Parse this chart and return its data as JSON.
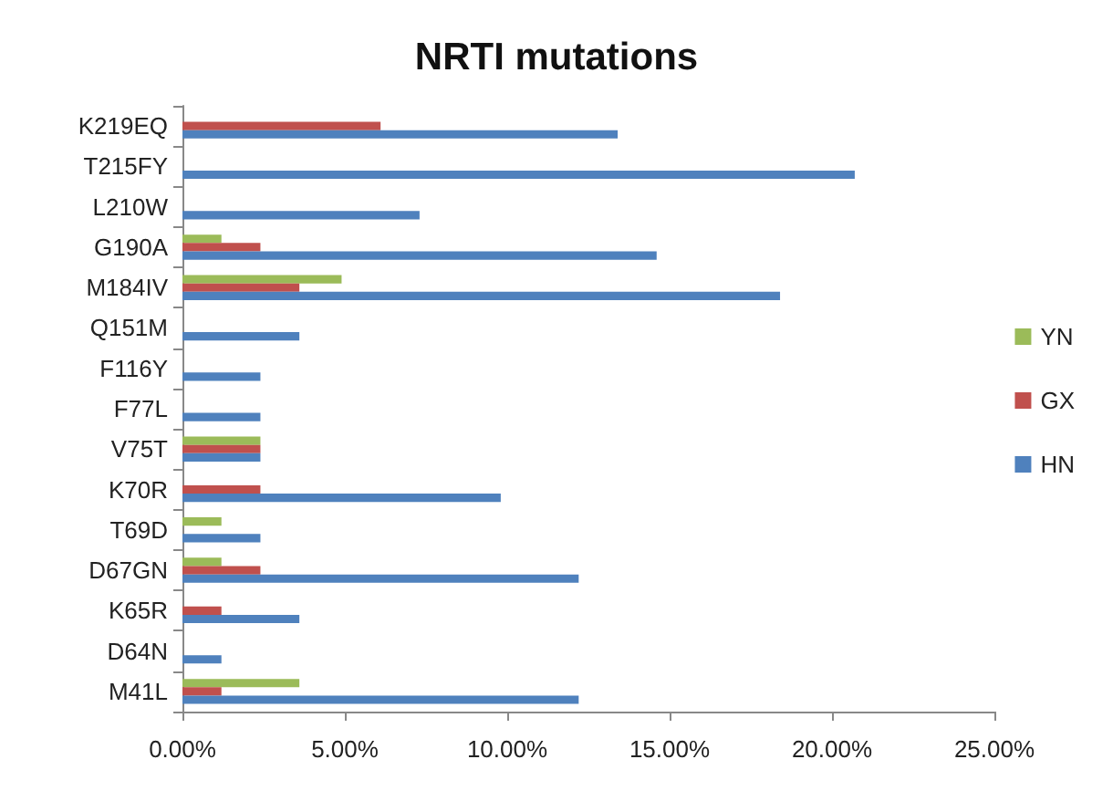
{
  "chart_data": {
    "type": "bar",
    "orientation": "horizontal",
    "title": "NRTI mutations",
    "categories": [
      "K219EQ",
      "T215FY",
      "L210W",
      "G190A",
      "M184IV",
      "Q151M",
      "F116Y",
      "F77L",
      "V75T",
      "K70R",
      "T69D",
      "D67GN",
      "K65R",
      "D64N",
      "M41L"
    ],
    "series": [
      {
        "name": "YN",
        "color": "#9bbb59",
        "values": [
          null,
          null,
          null,
          1.2,
          4.9,
          null,
          null,
          null,
          2.4,
          null,
          1.2,
          1.2,
          null,
          null,
          3.6
        ]
      },
      {
        "name": "GX",
        "color": "#c0504d",
        "values": [
          6.1,
          null,
          null,
          2.4,
          3.6,
          null,
          null,
          null,
          2.4,
          2.4,
          null,
          2.4,
          1.2,
          null,
          1.2
        ]
      },
      {
        "name": "HN",
        "color": "#4f81bd",
        "values": [
          13.4,
          20.7,
          7.3,
          14.6,
          18.4,
          3.6,
          2.4,
          2.4,
          2.4,
          9.8,
          2.4,
          12.2,
          3.6,
          1.2,
          12.2
        ]
      }
    ],
    "xlim": [
      0,
      25
    ],
    "xticks": [
      {
        "value": 0,
        "label": "0.00%"
      },
      {
        "value": 5,
        "label": "5.00%"
      },
      {
        "value": 10,
        "label": "10.00%"
      },
      {
        "value": 15,
        "label": "15.00%"
      },
      {
        "value": 20,
        "label": "20.00%"
      },
      {
        "value": 25,
        "label": "25.00%"
      }
    ],
    "grid": false,
    "legend": "right"
  }
}
